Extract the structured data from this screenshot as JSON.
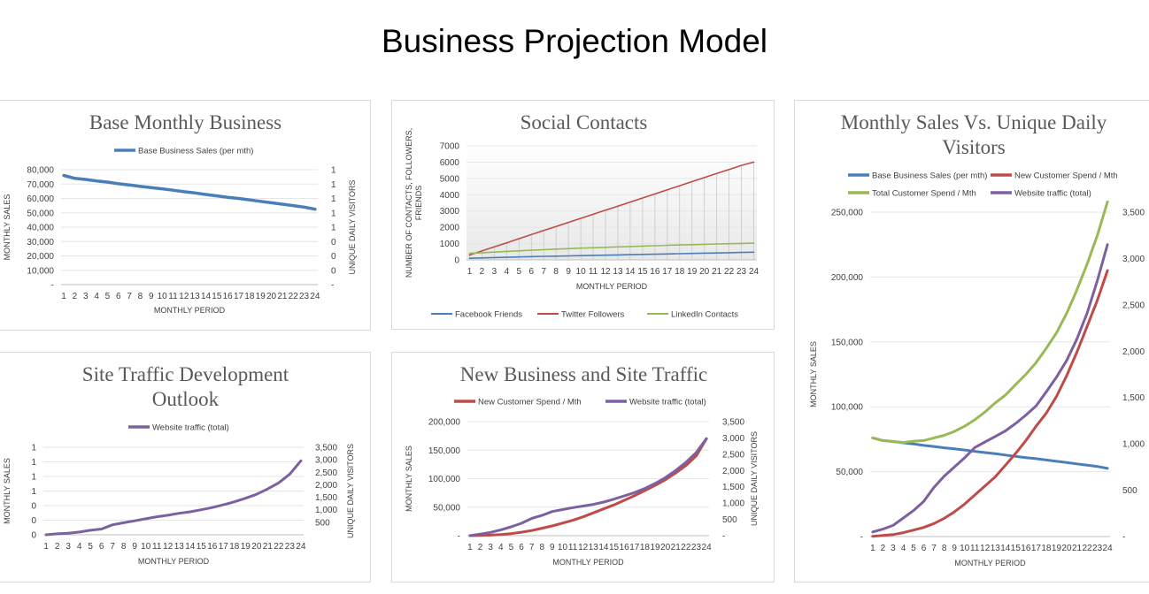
{
  "page_title": "Business Projection Model",
  "chart_data": [
    {
      "id": "base",
      "type": "line",
      "title": [
        "Base Monthly Business"
      ],
      "xlabel": "MONTHLY PERIOD",
      "ylabel": "MONTHLY SALES",
      "y2label": "UNIQUE DAILY VISITORS",
      "categories": [
        1,
        2,
        3,
        4,
        5,
        6,
        7,
        8,
        9,
        10,
        11,
        12,
        13,
        14,
        15,
        16,
        17,
        18,
        19,
        20,
        21,
        22,
        23,
        24
      ],
      "ylim": [
        0,
        80000
      ],
      "yticks": [
        "-",
        "10,000",
        "20,000",
        "30,000",
        "40,000",
        "50,000",
        "60,000",
        "70,000",
        "80,000"
      ],
      "y2ticks": [
        "-",
        "0",
        "0",
        "0",
        "1",
        "1",
        "1",
        "1",
        "1"
      ],
      "legend_position": "top",
      "series": [
        {
          "name": "Base Business Sales (per mth)",
          "color": "#4a7ebb",
          "width": 3.5,
          "values": [
            76000,
            74000,
            73200,
            72200,
            71400,
            70200,
            69400,
            68400,
            67600,
            66700,
            65700,
            64700,
            63800,
            62800,
            61800,
            60800,
            60000,
            59000,
            58000,
            57000,
            56000,
            55000,
            54000,
            52500
          ]
        }
      ]
    },
    {
      "id": "social",
      "type": "line",
      "title": [
        "Social Contacts"
      ],
      "xlabel": "MONTHLY PERIOD",
      "ylabel": [
        "NUMBER OF CONTACTS, FOLLOWERS,",
        "FRIENDS"
      ],
      "categories": [
        1,
        2,
        3,
        4,
        5,
        6,
        7,
        8,
        9,
        10,
        11,
        12,
        13,
        14,
        15,
        16,
        17,
        18,
        19,
        20,
        21,
        22,
        23,
        24
      ],
      "ylim": [
        0,
        7000
      ],
      "yticks": [
        "0",
        "1000",
        "2000",
        "3000",
        "4000",
        "5000",
        "6000",
        "7000"
      ],
      "drop_lines": true,
      "legend_position": "bottom",
      "series": [
        {
          "name": "Facebook Friends",
          "color": "#4a7ebb",
          "width": 1.6,
          "values": [
            100,
            120,
            140,
            160,
            180,
            200,
            215,
            230,
            245,
            260,
            275,
            290,
            305,
            320,
            335,
            350,
            365,
            380,
            395,
            410,
            425,
            440,
            455,
            470
          ]
        },
        {
          "name": "Twitter Followers",
          "color": "#be4b48",
          "width": 1.6,
          "values": [
            300,
            550,
            800,
            1050,
            1300,
            1550,
            1800,
            2050,
            2300,
            2550,
            2800,
            3050,
            3300,
            3550,
            3800,
            4050,
            4300,
            4550,
            4800,
            5050,
            5300,
            5550,
            5800,
            6000
          ]
        },
        {
          "name": "LinkedIn Contacts",
          "color": "#98b954",
          "width": 1.6,
          "values": [
            400,
            440,
            480,
            520,
            555,
            590,
            625,
            660,
            690,
            720,
            745,
            770,
            795,
            820,
            845,
            870,
            895,
            915,
            935,
            955,
            975,
            995,
            1010,
            1025
          ]
        }
      ]
    },
    {
      "id": "msvs",
      "type": "line",
      "title": [
        "Monthly Sales Vs. Unique Daily",
        "Visitors"
      ],
      "xlabel": "MONTHLY PERIOD",
      "ylabel": "MONTHLY SALES",
      "categories": [
        1,
        2,
        3,
        4,
        5,
        6,
        7,
        8,
        9,
        10,
        11,
        12,
        13,
        14,
        15,
        16,
        17,
        18,
        19,
        20,
        21,
        22,
        23,
        24
      ],
      "ylim": [
        0,
        250000
      ],
      "yticks": [
        "-",
        "50,000",
        "100,000",
        "150,000",
        "200,000",
        "250,000"
      ],
      "y2lim": [
        0,
        3500
      ],
      "y2ticks": [
        "-",
        "500",
        "1,000",
        "1,500",
        "2,000",
        "2,500",
        "3,000",
        "3,500"
      ],
      "legend_position": "top",
      "series": [
        {
          "name": "Base Business Sales (per mth)",
          "color": "#4a7ebb",
          "width": 3,
          "axis": "y",
          "values": [
            76000,
            74000,
            73200,
            72200,
            71400,
            70200,
            69400,
            68400,
            67600,
            66700,
            65700,
            64700,
            63800,
            62800,
            61800,
            60800,
            60000,
            59000,
            58000,
            57000,
            56000,
            55000,
            54000,
            52500
          ]
        },
        {
          "name": "New Customer Spend / Mth",
          "color": "#be4b48",
          "width": 3,
          "axis": "y",
          "values": [
            200,
            800,
            1500,
            3000,
            5000,
            7000,
            10000,
            14000,
            19000,
            25000,
            32000,
            39000,
            46000,
            55000,
            64000,
            74000,
            85000,
            95000,
            108000,
            124000,
            142000,
            162000,
            182000,
            205000
          ]
        },
        {
          "name": "Total Customer Spend / Mth",
          "color": "#98b954",
          "width": 3,
          "axis": "y",
          "values": [
            76000,
            74000,
            73200,
            72500,
            73500,
            74000,
            76000,
            78000,
            81000,
            85000,
            90000,
            96000,
            103000,
            109000,
            117000,
            125000,
            134000,
            145000,
            157000,
            172000,
            190000,
            210000,
            232000,
            258000
          ]
        },
        {
          "name": "Website traffic (total)",
          "color": "#7d60a0",
          "width": 3,
          "axis": "y2",
          "values": [
            50,
            80,
            120,
            200,
            280,
            380,
            530,
            650,
            750,
            850,
            960,
            1020,
            1080,
            1140,
            1220,
            1310,
            1410,
            1560,
            1720,
            1900,
            2130,
            2410,
            2760,
            3150
          ]
        }
      ]
    },
    {
      "id": "site",
      "type": "line",
      "title": [
        "Site Traffic Development",
        "Outlook"
      ],
      "xlabel": "MONTHLY PERIOD",
      "ylabel": "MONTHLY SALES",
      "y2label": "UNIQUE DAILY VISITORS",
      "categories": [
        1,
        2,
        3,
        4,
        5,
        6,
        7,
        8,
        9,
        10,
        11,
        12,
        13,
        14,
        15,
        16,
        17,
        18,
        19,
        20,
        21,
        22,
        23,
        24
      ],
      "yticks": [
        "0",
        "0",
        "0",
        "1",
        "1",
        "1",
        "1"
      ],
      "y2lim": [
        0,
        3500
      ],
      "y2ticks": [
        "",
        "500",
        "1,000",
        "1,500",
        "2,000",
        "2,500",
        "3,000",
        "3,500"
      ],
      "legend_position": "top",
      "series": [
        {
          "name": "Website traffic (total)",
          "color": "#7d60a0",
          "width": 3,
          "axis": "y2",
          "values": [
            0,
            40,
            60,
            110,
            180,
            230,
            400,
            480,
            560,
            640,
            720,
            780,
            860,
            920,
            1000,
            1090,
            1200,
            1320,
            1460,
            1620,
            1830,
            2080,
            2430,
            2960
          ]
        }
      ]
    },
    {
      "id": "newbiz",
      "type": "line",
      "title": [
        "New Business and Site Traffic"
      ],
      "xlabel": "MONTHLY PERIOD",
      "ylabel": "MONTHLY SALES",
      "y2label": "UNIQUE DAILY VISITORS",
      "categories": [
        1,
        2,
        3,
        4,
        5,
        6,
        7,
        8,
        9,
        10,
        11,
        12,
        13,
        14,
        15,
        16,
        17,
        18,
        19,
        20,
        21,
        22,
        23,
        24
      ],
      "ylim": [
        0,
        200000
      ],
      "yticks": [
        "-",
        "50,000",
        "100,000",
        "150,000",
        "200,000"
      ],
      "y2lim": [
        0,
        3500
      ],
      "y2ticks": [
        "-",
        "500",
        "1,000",
        "1,500",
        "2,000",
        "2,500",
        "3,000",
        "3,500"
      ],
      "legend_position": "top",
      "series": [
        {
          "name": "New Customer Spend / Mth",
          "color": "#be4b48",
          "width": 3,
          "axis": "y",
          "values": [
            0,
            500,
            1000,
            2000,
            3500,
            6000,
            9000,
            13000,
            17000,
            22000,
            27000,
            33000,
            40000,
            47000,
            54000,
            62000,
            70000,
            79000,
            88000,
            98000,
            110000,
            123000,
            140000,
            170000
          ]
        },
        {
          "name": "Website traffic (total)",
          "color": "#7d60a0",
          "width": 3,
          "axis": "y2",
          "values": [
            0,
            50,
            100,
            180,
            270,
            380,
            530,
            620,
            740,
            800,
            860,
            910,
            960,
            1030,
            1120,
            1220,
            1320,
            1450,
            1600,
            1780,
            2000,
            2250,
            2550,
            2980
          ]
        }
      ]
    }
  ]
}
